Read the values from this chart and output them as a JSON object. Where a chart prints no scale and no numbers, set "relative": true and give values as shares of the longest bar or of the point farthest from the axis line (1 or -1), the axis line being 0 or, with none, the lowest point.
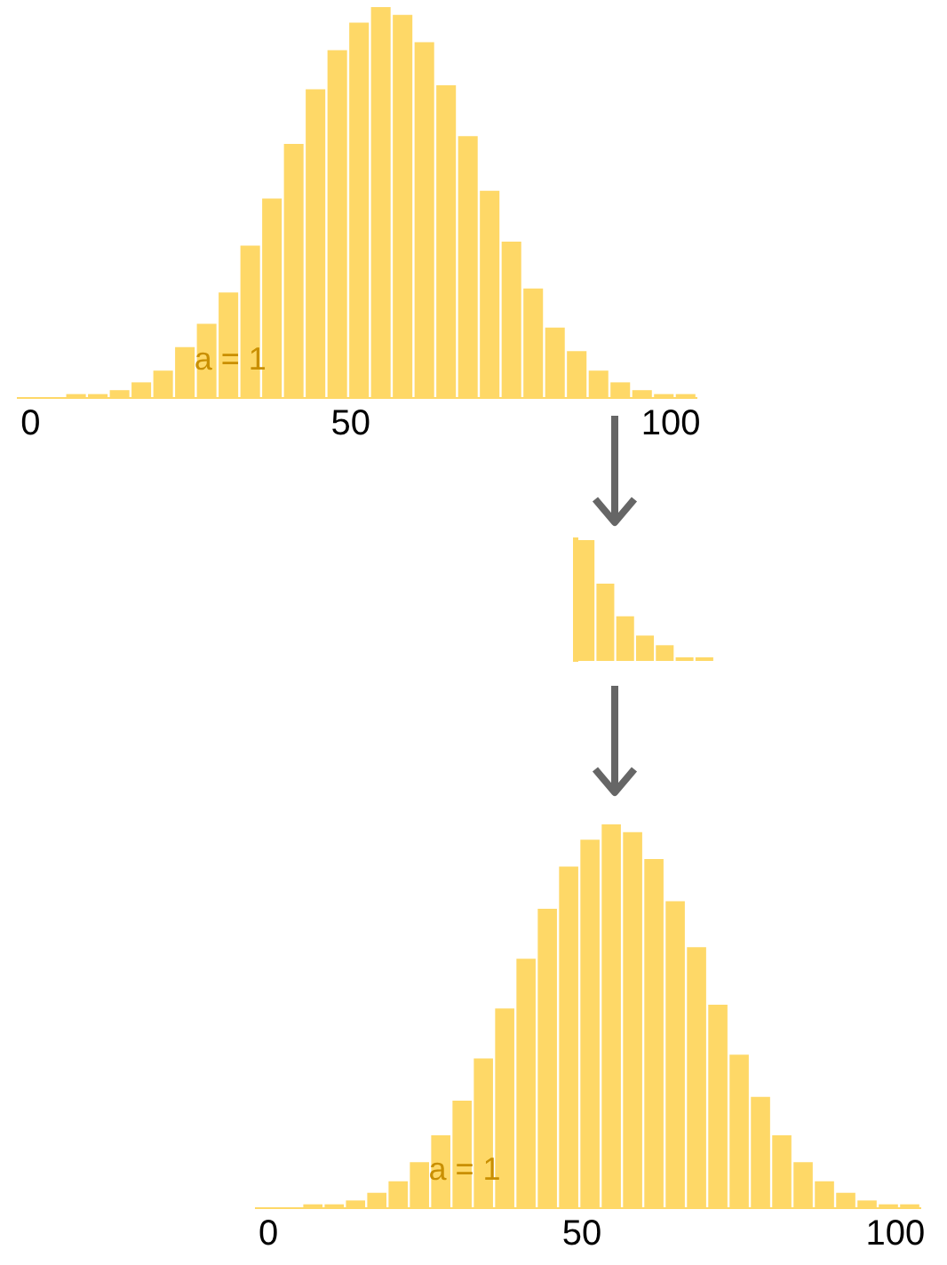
{
  "chart_data": [
    {
      "type": "bar",
      "relative": true,
      "x": [
        7.1,
        10.5,
        13.9,
        17.3,
        20.7,
        24.1,
        27.5,
        30.9,
        34.3,
        37.7,
        41.1,
        44.5,
        47.9,
        51.3,
        54.7,
        58.1,
        61.5,
        64.9,
        68.3,
        71.7,
        75.1,
        78.5,
        81.9,
        85.3,
        88.7,
        92.1,
        95.5,
        98.9,
        102.3
      ],
      "values": [
        0.01,
        0.01,
        0.02,
        0.04,
        0.07,
        0.13,
        0.19,
        0.27,
        0.39,
        0.51,
        0.65,
        0.79,
        0.89,
        0.96,
        1,
        0.98,
        0.91,
        0.8,
        0.67,
        0.53,
        0.4,
        0.28,
        0.18,
        0.12,
        0.07,
        0.04,
        0.02,
        0.01,
        0.01
      ],
      "color": "#fed867",
      "xlim": [
        -2,
        104
      ],
      "xticks": [
        0,
        50,
        100
      ],
      "grid": false,
      "annotations": [
        "a = 1"
      ]
    },
    {
      "type": "bar",
      "relative": true,
      "categories": [
        null,
        null,
        null,
        null,
        null,
        null,
        null
      ],
      "values": [
        1,
        0.64,
        0.37,
        0.21,
        0.13,
        0.03,
        0.03
      ],
      "color": "#fed867",
      "tick_labels": false,
      "grid": false
    },
    {
      "type": "bar",
      "relative": true,
      "x": [
        7.1,
        10.5,
        13.9,
        17.3,
        20.7,
        24.1,
        27.5,
        30.9,
        34.3,
        37.7,
        41.1,
        44.5,
        47.9,
        51.3,
        54.7,
        58.1,
        61.5,
        64.9,
        68.3,
        71.7,
        75.1,
        78.5,
        81.9,
        85.3,
        88.7,
        92.1,
        95.5,
        98.9,
        102.3
      ],
      "values": [
        0.01,
        0.01,
        0.02,
        0.04,
        0.07,
        0.12,
        0.19,
        0.28,
        0.39,
        0.52,
        0.65,
        0.78,
        0.89,
        0.96,
        1,
        0.98,
        0.91,
        0.8,
        0.68,
        0.53,
        0.4,
        0.29,
        0.19,
        0.12,
        0.07,
        0.04,
        0.02,
        0.01,
        0.01
      ],
      "color": "#fed867",
      "xlim": [
        -2,
        104
      ],
      "xticks": [
        0,
        50,
        100
      ],
      "grid": false,
      "annotations": [
        "a = 1"
      ]
    }
  ]
}
